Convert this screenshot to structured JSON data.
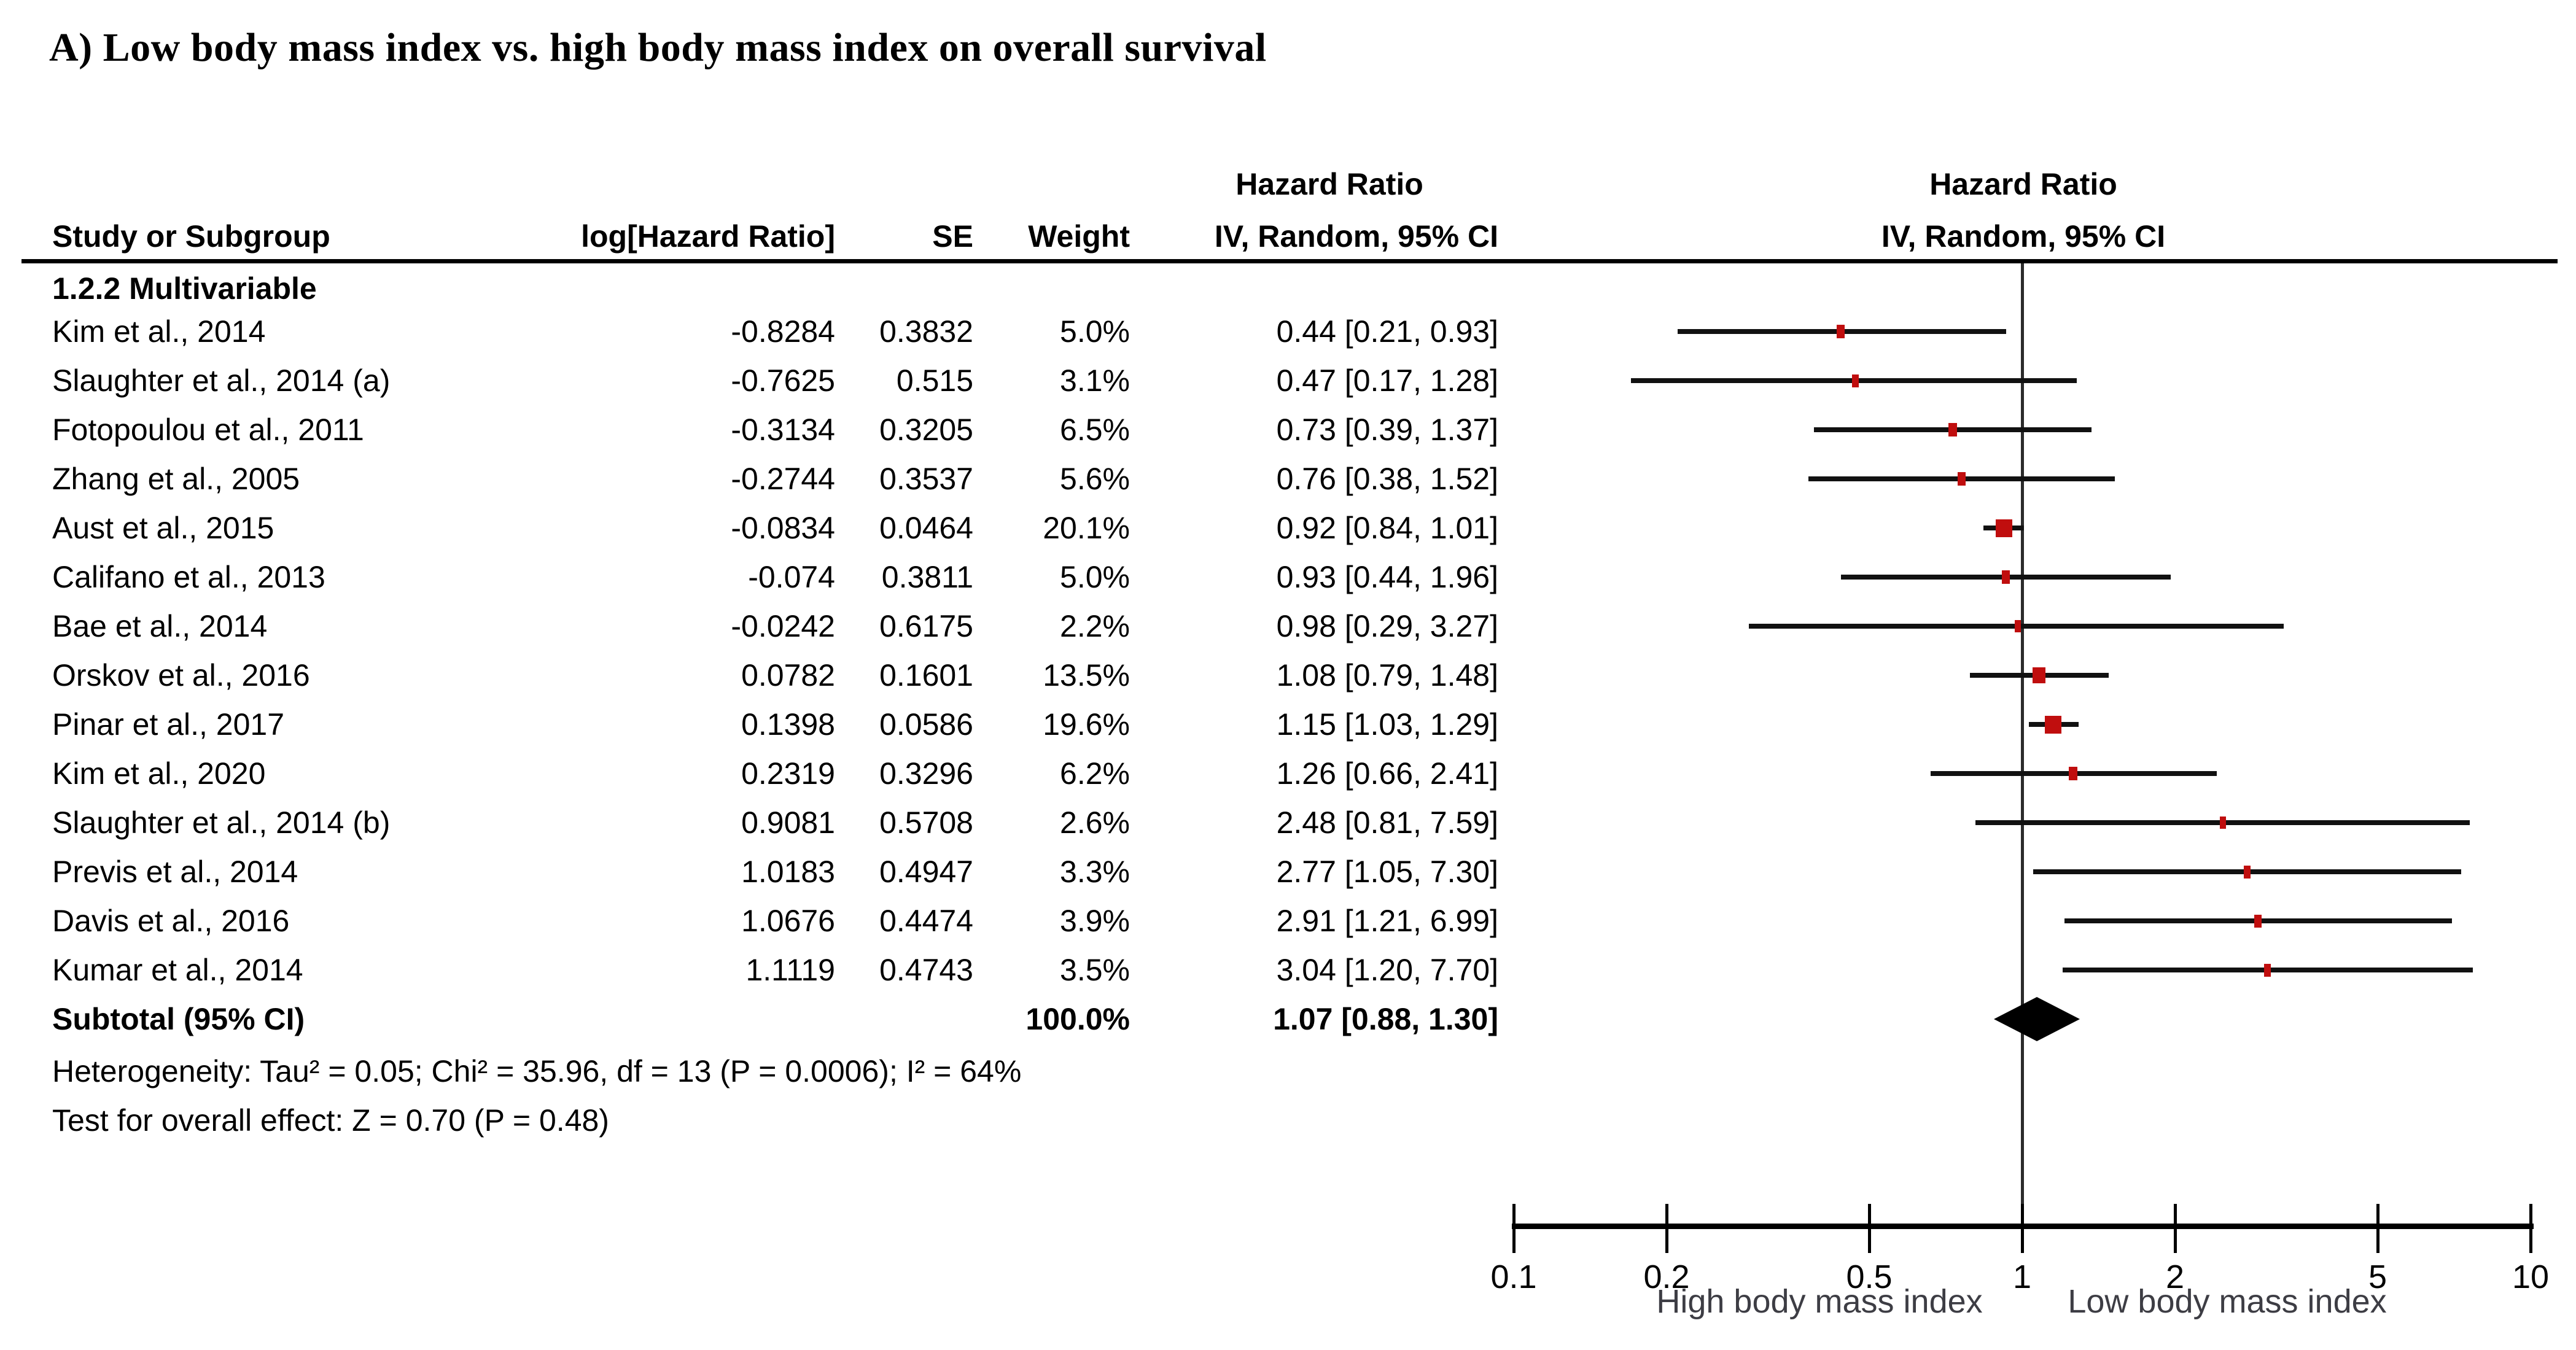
{
  "title": "A) Low body mass index vs. high body mass index on overall survival",
  "colors": {
    "marker": "#C00E0E",
    "ci_line": "#111111",
    "diamond": "#000000",
    "accent_text": "#3d3d44"
  },
  "chart_data": {
    "type": "forest",
    "effect_measure": "Hazard Ratio",
    "model": "IV, Random, 95% CI",
    "x_scale": "log",
    "xlim": [
      0.1,
      10
    ],
    "columns": {
      "study": "Study or Subgroup",
      "log_hr": "log[Hazard Ratio]",
      "se": "SE",
      "weight": "Weight",
      "ci_header_top": "Hazard Ratio",
      "ci_header": "IV, Random, 95% CI",
      "plot_header_top": "Hazard Ratio",
      "plot_header": "IV, Random, 95% CI"
    },
    "subgroup_label": "1.2.2 Multivariable",
    "studies": [
      {
        "name": "Kim et al., 2014",
        "log_hr": "-0.8284",
        "se": "0.3832",
        "weight": "5.0%",
        "weight_pct": 5.0,
        "ci_text": "0.44 [0.21, 0.93]",
        "hr": 0.44,
        "ci_low": 0.21,
        "ci_high": 0.93
      },
      {
        "name": "Slaughter et al., 2014 (a)",
        "log_hr": "-0.7625",
        "se": "0.515",
        "weight": "3.1%",
        "weight_pct": 3.1,
        "ci_text": "0.47 [0.17, 1.28]",
        "hr": 0.47,
        "ci_low": 0.17,
        "ci_high": 1.28
      },
      {
        "name": "Fotopoulou et al., 2011",
        "log_hr": "-0.3134",
        "se": "0.3205",
        "weight": "6.5%",
        "weight_pct": 6.5,
        "ci_text": "0.73 [0.39, 1.37]",
        "hr": 0.73,
        "ci_low": 0.39,
        "ci_high": 1.37
      },
      {
        "name": "Zhang et al., 2005",
        "log_hr": "-0.2744",
        "se": "0.3537",
        "weight": "5.6%",
        "weight_pct": 5.6,
        "ci_text": "0.76 [0.38, 1.52]",
        "hr": 0.76,
        "ci_low": 0.38,
        "ci_high": 1.52
      },
      {
        "name": "Aust et al., 2015",
        "log_hr": "-0.0834",
        "se": "0.0464",
        "weight": "20.1%",
        "weight_pct": 20.1,
        "ci_text": "0.92 [0.84, 1.01]",
        "hr": 0.92,
        "ci_low": 0.84,
        "ci_high": 1.01
      },
      {
        "name": "Califano et al., 2013",
        "log_hr": "-0.074",
        "se": "0.3811",
        "weight": "5.0%",
        "weight_pct": 5.0,
        "ci_text": "0.93 [0.44, 1.96]",
        "hr": 0.93,
        "ci_low": 0.44,
        "ci_high": 1.96
      },
      {
        "name": "Bae et al., 2014",
        "log_hr": "-0.0242",
        "se": "0.6175",
        "weight": "2.2%",
        "weight_pct": 2.2,
        "ci_text": "0.98 [0.29, 3.27]",
        "hr": 0.98,
        "ci_low": 0.29,
        "ci_high": 3.27
      },
      {
        "name": "Orskov et al., 2016",
        "log_hr": "0.0782",
        "se": "0.1601",
        "weight": "13.5%",
        "weight_pct": 13.5,
        "ci_text": "1.08 [0.79, 1.48]",
        "hr": 1.08,
        "ci_low": 0.79,
        "ci_high": 1.48
      },
      {
        "name": "Pinar et al., 2017",
        "log_hr": "0.1398",
        "se": "0.0586",
        "weight": "19.6%",
        "weight_pct": 19.6,
        "ci_text": "1.15 [1.03, 1.29]",
        "hr": 1.15,
        "ci_low": 1.03,
        "ci_high": 1.29
      },
      {
        "name": "Kim et al., 2020",
        "log_hr": "0.2319",
        "se": "0.3296",
        "weight": "6.2%",
        "weight_pct": 6.2,
        "ci_text": "1.26 [0.66, 2.41]",
        "hr": 1.26,
        "ci_low": 0.66,
        "ci_high": 2.41
      },
      {
        "name": "Slaughter et al., 2014 (b)",
        "log_hr": "0.9081",
        "se": "0.5708",
        "weight": "2.6%",
        "weight_pct": 2.6,
        "ci_text": "2.48 [0.81, 7.59]",
        "hr": 2.48,
        "ci_low": 0.81,
        "ci_high": 7.59
      },
      {
        "name": "Previs et al., 2014",
        "log_hr": "1.0183",
        "se": "0.4947",
        "weight": "3.3%",
        "weight_pct": 3.3,
        "ci_text": "2.77 [1.05, 7.30]",
        "hr": 2.77,
        "ci_low": 1.05,
        "ci_high": 7.3
      },
      {
        "name": "Davis et al., 2016",
        "log_hr": "1.0676",
        "se": "0.4474",
        "weight": "3.9%",
        "weight_pct": 3.9,
        "ci_text": "2.91 [1.21, 6.99]",
        "hr": 2.91,
        "ci_low": 1.21,
        "ci_high": 6.99
      },
      {
        "name": "Kumar et al., 2014",
        "log_hr": "1.1119",
        "se": "0.4743",
        "weight": "3.5%",
        "weight_pct": 3.5,
        "ci_text": "3.04 [1.20, 7.70]",
        "hr": 3.04,
        "ci_low": 1.2,
        "ci_high": 7.7
      }
    ],
    "subtotal": {
      "label": "Subtotal (95% CI)",
      "weight": "100.0%",
      "weight_pct": 100.0,
      "ci_text": "1.07 [0.88, 1.30]",
      "hr": 1.07,
      "ci_low": 0.88,
      "ci_high": 1.3
    },
    "heterogeneity": "Heterogeneity: Tau² = 0.05; Chi² = 35.96, df = 13 (P = 0.0006); I² = 64%",
    "test_overall": "Test for overall effect: Z = 0.70 (P = 0.48)",
    "axis": {
      "ticks": [
        0.1,
        0.2,
        0.5,
        1,
        2,
        5,
        10
      ],
      "tick_labels": [
        "0.1",
        "0.2",
        "0.5",
        "1",
        "2",
        "5",
        "10"
      ],
      "left_label": "High body mass index",
      "right_label": "Low body mass index"
    }
  }
}
